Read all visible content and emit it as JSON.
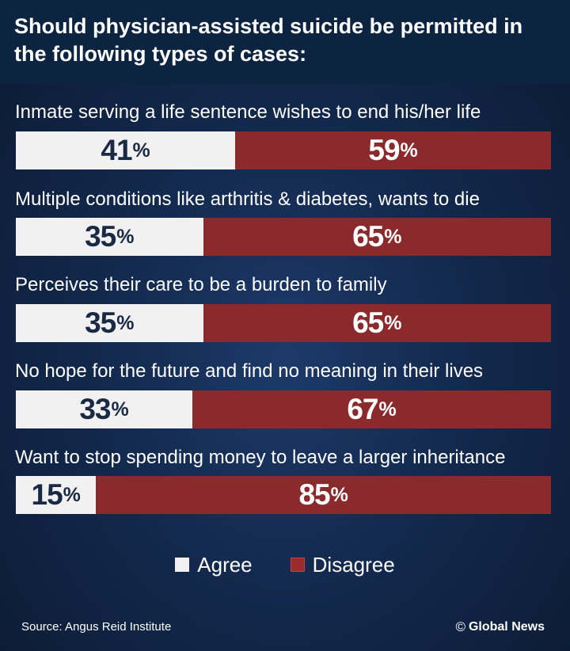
{
  "chart_data": {
    "type": "bar",
    "title": "Should physician-assisted suicide be permitted in the following types of cases:",
    "categories": [
      "Inmate serving a life sentence wishes to end his/her life",
      "Multiple conditions like arthritis & diabetes, wants to die",
      "Perceives their care to be a burden to family",
      "No hope for the future and find no meaning in their lives",
      "Want to stop spending money to leave a larger inheritance"
    ],
    "series": [
      {
        "name": "Agree",
        "values": [
          41,
          35,
          35,
          33,
          15
        ],
        "color": "#f1f1f1"
      },
      {
        "name": "Disagree",
        "values": [
          59,
          65,
          65,
          67,
          85
        ],
        "color": "#8b2a2d"
      }
    ],
    "stacked": true,
    "orientation": "horizontal",
    "unit": "%",
    "legend_position": "bottom"
  },
  "footer": {
    "source": "Source: Angus Reid Institute",
    "credit": "Global News",
    "credit_icon": "copyright-icon"
  }
}
